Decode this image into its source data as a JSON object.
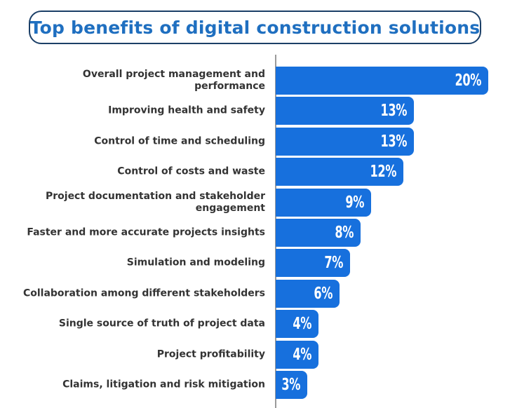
{
  "title": "Top benefits of digital construction solutions",
  "colors": {
    "bar": "#1770dd",
    "title_text": "#1f6fc0",
    "title_border": "#1b3f67",
    "label_text": "#333333",
    "outside_value": "#1a5fb4"
  },
  "chart_data": {
    "type": "bar",
    "orientation": "horizontal",
    "title": "Top benefits of digital construction solutions",
    "xlabel": "",
    "ylabel": "",
    "unit": "%",
    "xlim": [
      0,
      20
    ],
    "grid": false,
    "legend": "none",
    "categories": [
      "Overall project management and performance",
      "Improving health and safety",
      "Control of time and scheduling",
      "Control of costs and waste",
      "Project documentation and stakeholder engagement",
      "Faster and more accurate projects insights",
      "Simulation and modeling",
      "Collaboration among different stakeholders",
      "Single source of truth of project data",
      "Project profitability",
      "Claims, litigation and risk mitigation"
    ],
    "values": [
      20,
      13,
      13,
      12,
      9,
      8,
      7,
      6,
      4,
      4,
      3
    ],
    "value_labels": [
      "20%",
      "13%",
      "13%",
      "12%",
      "9%",
      "8%",
      "7%",
      "6%",
      "4%",
      "4%",
      "3%"
    ]
  }
}
